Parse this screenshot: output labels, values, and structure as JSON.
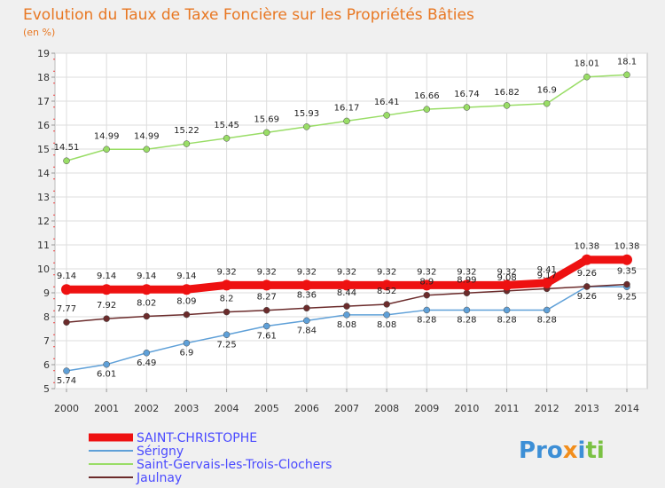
{
  "chart_data": {
    "type": "line",
    "title": "Evolution du Taux de Taxe Foncière sur les Propriétés Bâties",
    "subtitle": "(en %)",
    "x": [
      "2000",
      "2001",
      "2002",
      "2003",
      "2004",
      "2005",
      "2006",
      "2007",
      "2008",
      "2009",
      "2010",
      "2011",
      "2012",
      "2013",
      "2014"
    ],
    "ylim": [
      5,
      19
    ],
    "yticks": [
      5,
      6,
      7,
      8,
      9,
      10,
      11,
      12,
      13,
      14,
      15,
      16,
      17,
      18,
      19
    ],
    "series": [
      {
        "name": "SAINT-CHRISTOPHE",
        "color": "#ee1111",
        "values": [
          9.14,
          9.14,
          9.14,
          9.14,
          9.32,
          9.32,
          9.32,
          9.32,
          9.32,
          9.32,
          9.32,
          9.32,
          9.41,
          10.38,
          10.38
        ],
        "labels": [
          "9.14",
          "9.14",
          "9.14",
          "9.14",
          "9.32",
          "9.32",
          "9.32",
          "9.32",
          "9.32",
          "9.32",
          "9.32",
          "9.32",
          "9.41",
          "10.38",
          "10.38"
        ]
      },
      {
        "name": "Sérigny",
        "color": "#5fa0d8",
        "values": [
          5.74,
          6.01,
          6.49,
          6.9,
          7.25,
          7.61,
          7.84,
          8.08,
          8.08,
          8.28,
          8.28,
          8.28,
          8.28,
          9.26,
          9.25
        ],
        "labels": [
          "5.74",
          "6.01",
          "6.49",
          "6.9",
          "7.25",
          "7.61",
          "7.84",
          "8.08",
          "8.08",
          "8.28",
          "8.28",
          "8.28",
          "8.28",
          "9.26",
          "9.25"
        ]
      },
      {
        "name": "Saint-Gervais-les-Trois-Clochers",
        "color": "#99dd66",
        "values": [
          14.51,
          14.99,
          14.99,
          15.22,
          15.45,
          15.69,
          15.93,
          16.17,
          16.41,
          16.66,
          16.74,
          16.82,
          16.9,
          18.01,
          18.1
        ],
        "labels": [
          "14.51",
          "14.99",
          "14.99",
          "15.22",
          "15.45",
          "15.69",
          "15.93",
          "16.17",
          "16.41",
          "16.66",
          "16.74",
          "16.82",
          "16.9",
          "18.01",
          "18.1"
        ]
      },
      {
        "name": "Jaulnay",
        "color": "#6b2b2b",
        "values": [
          7.77,
          7.92,
          8.02,
          8.09,
          8.2,
          8.27,
          8.36,
          8.44,
          8.52,
          8.9,
          8.99,
          9.08,
          9.17,
          9.26,
          9.35
        ],
        "labels": [
          "7.77",
          "7.92",
          "8.02",
          "8.09",
          "8.2",
          "8.27",
          "8.36",
          "8.44",
          "8.52",
          "8.9",
          "8.99",
          "9.08",
          "9.17",
          "9.26",
          "9.35"
        ]
      }
    ],
    "logo": "Proxiti"
  }
}
